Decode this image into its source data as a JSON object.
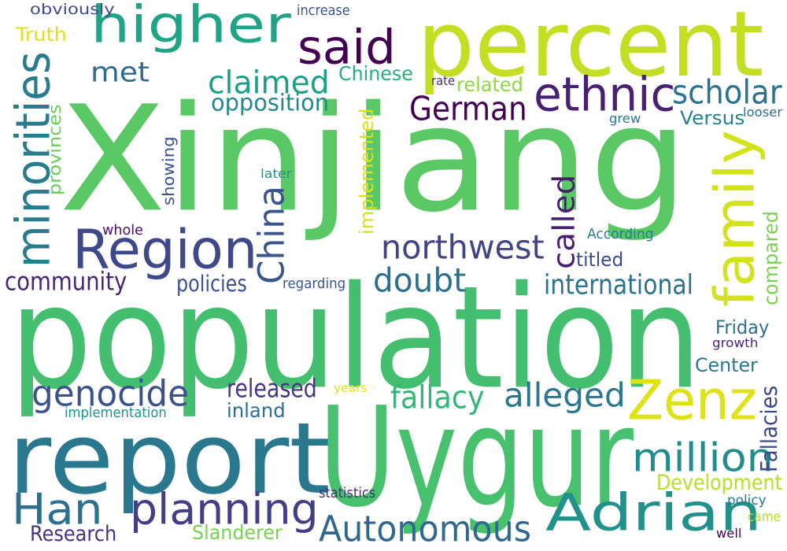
{
  "background": "#ffffff",
  "words": [
    {
      "text": "Xinjiang",
      "color": "#5ac864",
      "orientation": "horizontal"
    },
    {
      "text": "population",
      "color": "#44bf70",
      "orientation": "horizontal"
    },
    {
      "text": "report",
      "color": "#2a788e",
      "orientation": "horizontal"
    },
    {
      "text": "Uygur",
      "color": "#48c16e",
      "orientation": "horizontal"
    },
    {
      "text": "percent",
      "color": "#c2df23",
      "orientation": "horizontal"
    },
    {
      "text": "higher",
      "color": "#20a486",
      "orientation": "horizontal"
    },
    {
      "text": "Region",
      "color": "#3e4989",
      "orientation": "horizontal"
    },
    {
      "text": "family",
      "color": "#d2e21b",
      "orientation": "vertical"
    },
    {
      "text": "Zenz",
      "color": "#dde318",
      "orientation": "horizontal"
    },
    {
      "text": "Adrian",
      "color": "#21918c",
      "orientation": "horizontal"
    },
    {
      "text": "minorities",
      "color": "#287c8e",
      "orientation": "vertical"
    },
    {
      "text": "said",
      "color": "#440154",
      "orientation": "horizontal"
    },
    {
      "text": "ethnic",
      "color": "#482173",
      "orientation": "horizontal"
    },
    {
      "text": "million",
      "color": "#228c8d",
      "orientation": "horizontal"
    },
    {
      "text": "planning",
      "color": "#433e85",
      "orientation": "horizontal"
    },
    {
      "text": "Han",
      "color": "#2d708e",
      "orientation": "horizontal"
    },
    {
      "text": "genocide",
      "color": "#3b528b",
      "orientation": "horizontal"
    },
    {
      "text": "Autonomous",
      "color": "#31688e",
      "orientation": "horizontal"
    },
    {
      "text": "China",
      "color": "#39558c",
      "orientation": "vertical"
    },
    {
      "text": "northwest",
      "color": "#414487",
      "orientation": "horizontal"
    },
    {
      "text": "claimed",
      "color": "#1f9f88",
      "orientation": "horizontal"
    },
    {
      "text": "scholar",
      "color": "#2c738e",
      "orientation": "horizontal"
    },
    {
      "text": "German",
      "color": "#440154",
      "orientation": "horizontal"
    },
    {
      "text": "alleged",
      "color": "#2a778e",
      "orientation": "horizontal"
    },
    {
      "text": "fallacy",
      "color": "#34b679",
      "orientation": "horizontal"
    },
    {
      "text": "doubt",
      "color": "#2d708e",
      "orientation": "horizontal"
    },
    {
      "text": "called",
      "color": "#481f70",
      "orientation": "vertical"
    },
    {
      "text": "met",
      "color": "#2f6b8e",
      "orientation": "horizontal"
    },
    {
      "text": "opposition",
      "color": "#23888e",
      "orientation": "horizontal"
    },
    {
      "text": "international",
      "color": "#2c728e",
      "orientation": "horizontal"
    },
    {
      "text": "community",
      "color": "#482475",
      "orientation": "horizontal"
    },
    {
      "text": "released",
      "color": "#453781",
      "orientation": "horizontal"
    },
    {
      "text": "Development",
      "color": "#b8de29",
      "orientation": "horizontal"
    },
    {
      "text": "policies",
      "color": "#3b528b",
      "orientation": "horizontal"
    },
    {
      "text": "Chinese",
      "color": "#29af7f",
      "orientation": "horizontal"
    },
    {
      "text": "inland",
      "color": "#2d708e",
      "orientation": "horizontal"
    },
    {
      "text": "Friday",
      "color": "#2d718e",
      "orientation": "horizontal"
    },
    {
      "text": "Center",
      "color": "#2a788e",
      "orientation": "horizontal"
    },
    {
      "text": "Versus",
      "color": "#26828e",
      "orientation": "horizontal"
    },
    {
      "text": "compared",
      "color": "#7ad151",
      "orientation": "vertical"
    },
    {
      "text": "Research",
      "color": "#46337e",
      "orientation": "horizontal"
    },
    {
      "text": "Slanderer",
      "color": "#7ad151",
      "orientation": "horizontal"
    },
    {
      "text": "related",
      "color": "#8fd744",
      "orientation": "horizontal"
    },
    {
      "text": "Truth",
      "color": "#dde318",
      "orientation": "horizontal"
    },
    {
      "text": "titled",
      "color": "#3e4989",
      "orientation": "horizontal"
    },
    {
      "text": "provinces",
      "color": "#6ccd5a",
      "orientation": "vertical"
    },
    {
      "text": "implemented",
      "color": "#d8e219",
      "orientation": "vertical"
    },
    {
      "text": "Fallacies",
      "color": "#3e4989",
      "orientation": "vertical"
    },
    {
      "text": "showing",
      "color": "#3b528b",
      "orientation": "vertical"
    },
    {
      "text": "obviously",
      "color": "#3e4a89",
      "orientation": "horizontal"
    },
    {
      "text": "increase",
      "color": "#39568c",
      "orientation": "horizontal"
    },
    {
      "text": "implementation",
      "color": "#20938c",
      "orientation": "horizontal"
    },
    {
      "text": "According",
      "color": "#277f8e",
      "orientation": "horizontal"
    },
    {
      "text": "statistics",
      "color": "#472d7b",
      "orientation": "horizontal"
    },
    {
      "text": "regarding",
      "color": "#39568c",
      "orientation": "horizontal"
    },
    {
      "text": "whole",
      "color": "#471063",
      "orientation": "horizontal"
    },
    {
      "text": "later",
      "color": "#1f958b",
      "orientation": "horizontal"
    },
    {
      "text": "growth",
      "color": "#482576",
      "orientation": "horizontal"
    },
    {
      "text": "grew",
      "color": "#2a788e",
      "orientation": "horizontal"
    },
    {
      "text": "rate",
      "color": "#472c7a",
      "orientation": "horizontal"
    },
    {
      "text": "looser",
      "color": "#2e6e8e",
      "orientation": "horizontal"
    },
    {
      "text": "years",
      "color": "#dfe318",
      "orientation": "horizontal"
    },
    {
      "text": "policy",
      "color": "#2a768e",
      "orientation": "horizontal"
    },
    {
      "text": "came",
      "color": "#b5de2b",
      "orientation": "horizontal"
    },
    {
      "text": "well",
      "color": "#440154",
      "orientation": "horizontal"
    }
  ]
}
